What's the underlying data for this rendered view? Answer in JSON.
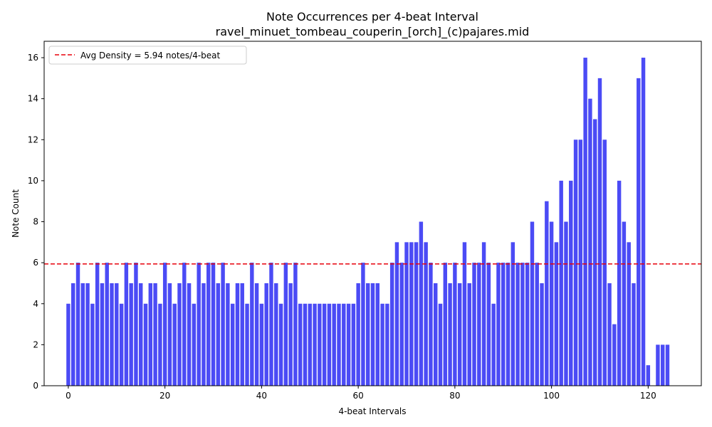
{
  "chart_data": {
    "type": "bar",
    "title": "Note Occurrences per 4-beat Interval",
    "subtitle": "ravel_minuet_tombeau_couperin_[orch]_(c)pajares.mid",
    "xlabel": "4-beat Intervals",
    "ylabel": "Note Count",
    "xlim": [
      -5,
      131
    ],
    "ylim": [
      0,
      16.8
    ],
    "xticks": [
      0,
      20,
      40,
      60,
      80,
      100,
      120
    ],
    "yticks": [
      0,
      2,
      4,
      6,
      8,
      10,
      12,
      14,
      16
    ],
    "x": [
      0,
      1,
      2,
      3,
      4,
      5,
      6,
      7,
      8,
      9,
      10,
      11,
      12,
      13,
      14,
      15,
      16,
      17,
      18,
      19,
      20,
      21,
      22,
      23,
      24,
      25,
      26,
      27,
      28,
      29,
      30,
      31,
      32,
      33,
      34,
      35,
      36,
      37,
      38,
      39,
      40,
      41,
      42,
      43,
      44,
      45,
      46,
      47,
      48,
      49,
      50,
      51,
      52,
      53,
      54,
      55,
      56,
      57,
      58,
      59,
      60,
      61,
      62,
      63,
      64,
      65,
      66,
      67,
      68,
      69,
      70,
      71,
      72,
      73,
      74,
      75,
      76,
      77,
      78,
      79,
      80,
      81,
      82,
      83,
      84,
      85,
      86,
      87,
      88,
      89,
      90,
      91,
      92,
      93,
      94,
      95,
      96,
      97,
      98,
      99,
      100,
      101,
      102,
      103,
      104,
      105,
      106,
      107,
      108,
      109,
      110,
      111,
      112,
      113,
      114,
      115,
      116,
      117,
      118,
      119,
      120,
      121,
      122,
      123,
      124
    ],
    "values": [
      4,
      5,
      6,
      5,
      5,
      4,
      6,
      5,
      6,
      5,
      5,
      4,
      6,
      5,
      6,
      5,
      4,
      5,
      5,
      4,
      6,
      5,
      4,
      5,
      6,
      5,
      4,
      6,
      5,
      6,
      6,
      5,
      6,
      5,
      4,
      5,
      5,
      4,
      6,
      5,
      4,
      5,
      6,
      5,
      4,
      6,
      5,
      6,
      4,
      4,
      4,
      4,
      4,
      4,
      4,
      4,
      4,
      4,
      4,
      4,
      5,
      6,
      5,
      5,
      5,
      4,
      4,
      6,
      7,
      6,
      7,
      7,
      7,
      8,
      7,
      6,
      5,
      4,
      6,
      5,
      6,
      5,
      7,
      5,
      6,
      6,
      7,
      6,
      4,
      6,
      6,
      6,
      7,
      6,
      6,
      6,
      8,
      6,
      5,
      9,
      8,
      7,
      10,
      8,
      10,
      12,
      12,
      16,
      14,
      13,
      15,
      12,
      5,
      3,
      10,
      8,
      7,
      5,
      15,
      16,
      1,
      0,
      2,
      2,
      2
    ],
    "bar_color": "#4b4bf5",
    "average_line": {
      "value": 5.94,
      "label": "Avg Density = 5.94 notes/4-beat",
      "color": "#e8000b",
      "style": "dashed"
    },
    "legend_position": "top-left",
    "grid": false
  }
}
